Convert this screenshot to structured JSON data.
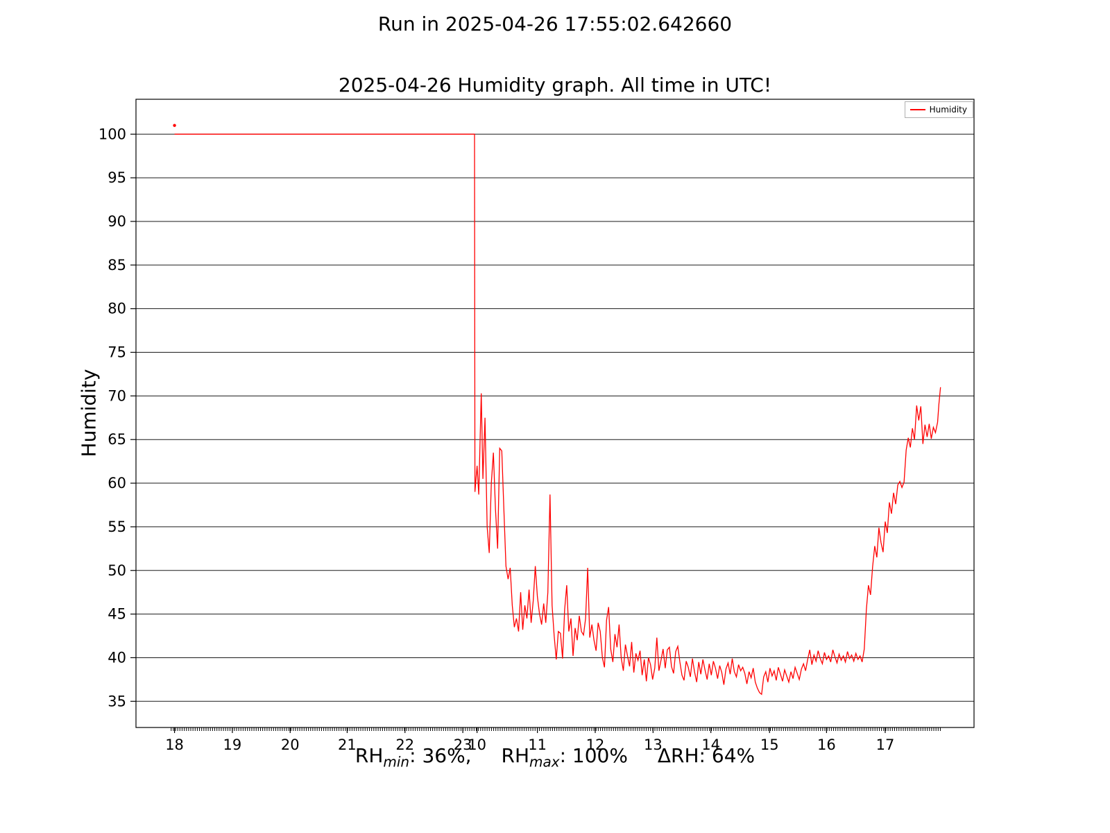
{
  "suptitle": "Run in 2025-04-26 17:55:02.642660",
  "chart_data": {
    "type": "line",
    "title": "2025-04-26 Humidity graph. All time in UTC!",
    "ylabel": "Humidity",
    "xlabel_parts": {
      "rh1": "RH",
      "sub1": "min",
      "v1": ": 36%,",
      "rh2": "RH",
      "sub2": "max",
      "v2": ": 100%",
      "delta": "ΔRH: 64%"
    },
    "stats": {
      "rh_min": "36%",
      "rh_max": "100%",
      "delta_rh": "64%"
    },
    "legend": {
      "label": "Humidity",
      "position": "upper right"
    },
    "line_color": "#ff0000",
    "grid": true,
    "ylim": [
      32,
      104
    ],
    "yticks": [
      35,
      40,
      45,
      50,
      55,
      60,
      65,
      70,
      75,
      80,
      85,
      90,
      95,
      100
    ],
    "xticks": [
      {
        "label": "18",
        "f": 0.046
      },
      {
        "label": "19",
        "f": 0.115
      },
      {
        "label": "20",
        "f": 0.184
      },
      {
        "label": "21",
        "f": 0.252
      },
      {
        "label": "22",
        "f": 0.321
      },
      {
        "label": "23",
        "f": 0.39
      },
      {
        "label": "10",
        "f": 0.407
      },
      {
        "label": "11",
        "f": 0.479
      },
      {
        "label": "12",
        "f": 0.548
      },
      {
        "label": "13",
        "f": 0.617
      },
      {
        "label": "14",
        "f": 0.686
      },
      {
        "label": "15",
        "f": 0.756
      },
      {
        "label": "16",
        "f": 0.824
      },
      {
        "label": "17",
        "f": 0.894
      }
    ],
    "minor_ticks": {
      "start": 0.042,
      "end": 0.961,
      "step": 0.0026
    },
    "outlier_point": {
      "f": 0.046,
      "y": 101
    },
    "series": [
      [
        0.046,
        100
      ],
      [
        0.404,
        100
      ],
      [
        0.4045,
        59.0
      ],
      [
        0.407,
        62.0
      ],
      [
        0.409,
        58.7
      ],
      [
        0.412,
        70.3
      ],
      [
        0.414,
        60.5
      ],
      [
        0.4165,
        67.5
      ],
      [
        0.419,
        55.0
      ],
      [
        0.4215,
        52.0
      ],
      [
        0.424,
        60.0
      ],
      [
        0.4265,
        63.5
      ],
      [
        0.429,
        57.0
      ],
      [
        0.4315,
        52.5
      ],
      [
        0.434,
        64.0
      ],
      [
        0.4365,
        63.7
      ],
      [
        0.439,
        57.0
      ],
      [
        0.4415,
        50.5
      ],
      [
        0.444,
        49.0
      ],
      [
        0.4465,
        50.3
      ],
      [
        0.449,
        46.0
      ],
      [
        0.4515,
        43.5
      ],
      [
        0.454,
        44.5
      ],
      [
        0.4565,
        43.0
      ],
      [
        0.459,
        47.5
      ],
      [
        0.4615,
        43.2
      ],
      [
        0.464,
        46.0
      ],
      [
        0.4665,
        44.5
      ],
      [
        0.469,
        47.8
      ],
      [
        0.4715,
        44.0
      ],
      [
        0.474,
        46.5
      ],
      [
        0.4765,
        50.5
      ],
      [
        0.479,
        47.0
      ],
      [
        0.4815,
        45.0
      ],
      [
        0.484,
        43.8
      ],
      [
        0.4865,
        46.2
      ],
      [
        0.489,
        44.0
      ],
      [
        0.4915,
        47.5
      ],
      [
        0.494,
        58.7
      ],
      [
        0.4965,
        46.0
      ],
      [
        0.499,
        42.5
      ],
      [
        0.5015,
        39.8
      ],
      [
        0.504,
        43.0
      ],
      [
        0.5065,
        42.8
      ],
      [
        0.509,
        39.9
      ],
      [
        0.5115,
        45.5
      ],
      [
        0.514,
        48.3
      ],
      [
        0.5165,
        43.0
      ],
      [
        0.519,
        44.5
      ],
      [
        0.5215,
        40.2
      ],
      [
        0.524,
        43.4
      ],
      [
        0.5265,
        42.0
      ],
      [
        0.529,
        44.8
      ],
      [
        0.5315,
        43.0
      ],
      [
        0.534,
        42.6
      ],
      [
        0.5365,
        44.5
      ],
      [
        0.539,
        50.3
      ],
      [
        0.5415,
        42.3
      ],
      [
        0.544,
        43.8
      ],
      [
        0.5465,
        42.0
      ],
      [
        0.549,
        40.8
      ],
      [
        0.5515,
        44.0
      ],
      [
        0.554,
        43.0
      ],
      [
        0.5565,
        40.0
      ],
      [
        0.559,
        38.9
      ],
      [
        0.5615,
        44.3
      ],
      [
        0.564,
        45.8
      ],
      [
        0.5665,
        41.0
      ],
      [
        0.569,
        39.5
      ],
      [
        0.5715,
        42.7
      ],
      [
        0.574,
        41.2
      ],
      [
        0.5765,
        43.8
      ],
      [
        0.579,
        40.0
      ],
      [
        0.5815,
        38.5
      ],
      [
        0.584,
        41.5
      ],
      [
        0.5865,
        40.2
      ],
      [
        0.589,
        39.0
      ],
      [
        0.5915,
        41.8
      ],
      [
        0.594,
        38.3
      ],
      [
        0.5965,
        40.5
      ],
      [
        0.599,
        39.7
      ],
      [
        0.6015,
        40.8
      ],
      [
        0.604,
        38.0
      ],
      [
        0.6065,
        39.8
      ],
      [
        0.609,
        37.3
      ],
      [
        0.6115,
        40.0
      ],
      [
        0.614,
        39.2
      ],
      [
        0.6165,
        37.5
      ],
      [
        0.619,
        38.8
      ],
      [
        0.6215,
        42.3
      ],
      [
        0.624,
        38.5
      ],
      [
        0.6265,
        39.7
      ],
      [
        0.629,
        41.0
      ],
      [
        0.6315,
        38.8
      ],
      [
        0.634,
        40.9
      ],
      [
        0.6365,
        41.2
      ],
      [
        0.639,
        39.0
      ],
      [
        0.6415,
        38.2
      ],
      [
        0.644,
        40.7
      ],
      [
        0.6465,
        41.3
      ],
      [
        0.649,
        39.5
      ],
      [
        0.6515,
        38.0
      ],
      [
        0.654,
        37.4
      ],
      [
        0.6565,
        39.6
      ],
      [
        0.659,
        38.9
      ],
      [
        0.6615,
        37.8
      ],
      [
        0.664,
        39.9
      ],
      [
        0.6665,
        38.4
      ],
      [
        0.669,
        37.2
      ],
      [
        0.6715,
        39.5
      ],
      [
        0.674,
        38.1
      ],
      [
        0.6765,
        39.8
      ],
      [
        0.679,
        38.6
      ],
      [
        0.6815,
        37.5
      ],
      [
        0.684,
        39.3
      ],
      [
        0.6865,
        38.0
      ],
      [
        0.689,
        39.6
      ],
      [
        0.6915,
        38.8
      ],
      [
        0.694,
        37.6
      ],
      [
        0.6965,
        39.1
      ],
      [
        0.699,
        38.3
      ],
      [
        0.7015,
        36.9
      ],
      [
        0.704,
        38.7
      ],
      [
        0.7065,
        39.4
      ],
      [
        0.709,
        38.1
      ],
      [
        0.7115,
        39.9
      ],
      [
        0.714,
        38.4
      ],
      [
        0.7165,
        37.8
      ],
      [
        0.719,
        39.2
      ],
      [
        0.7215,
        38.5
      ],
      [
        0.724,
        38.9
      ],
      [
        0.7265,
        38.2
      ],
      [
        0.729,
        37.0
      ],
      [
        0.7315,
        38.4
      ],
      [
        0.734,
        37.7
      ],
      [
        0.7365,
        38.8
      ],
      [
        0.739,
        37.2
      ],
      [
        0.7415,
        36.5
      ],
      [
        0.744,
        36.0
      ],
      [
        0.7465,
        35.8
      ],
      [
        0.749,
        37.8
      ],
      [
        0.7515,
        38.4
      ],
      [
        0.754,
        37.2
      ],
      [
        0.7565,
        38.8
      ],
      [
        0.759,
        37.9
      ],
      [
        0.7615,
        38.5
      ],
      [
        0.764,
        37.4
      ],
      [
        0.7665,
        38.9
      ],
      [
        0.769,
        38.1
      ],
      [
        0.7715,
        37.3
      ],
      [
        0.774,
        38.6
      ],
      [
        0.7765,
        37.9
      ],
      [
        0.779,
        37.2
      ],
      [
        0.7815,
        38.4
      ],
      [
        0.784,
        37.6
      ],
      [
        0.7865,
        38.9
      ],
      [
        0.789,
        38.2
      ],
      [
        0.7915,
        37.5
      ],
      [
        0.794,
        38.7
      ],
      [
        0.7965,
        39.3
      ],
      [
        0.799,
        38.5
      ],
      [
        0.8015,
        39.8
      ],
      [
        0.804,
        40.9
      ],
      [
        0.8065,
        39.2
      ],
      [
        0.809,
        40.3
      ],
      [
        0.8115,
        39.6
      ],
      [
        0.814,
        40.8
      ],
      [
        0.8165,
        39.9
      ],
      [
        0.819,
        39.3
      ],
      [
        0.8215,
        40.6
      ],
      [
        0.824,
        39.8
      ],
      [
        0.8265,
        40.2
      ],
      [
        0.829,
        39.5
      ],
      [
        0.8315,
        40.9
      ],
      [
        0.834,
        40.1
      ],
      [
        0.8365,
        39.4
      ],
      [
        0.839,
        40.4
      ],
      [
        0.8415,
        39.7
      ],
      [
        0.844,
        40.2
      ],
      [
        0.8465,
        39.5
      ],
      [
        0.849,
        40.7
      ],
      [
        0.8515,
        39.9
      ],
      [
        0.854,
        40.3
      ],
      [
        0.8565,
        39.6
      ],
      [
        0.859,
        40.5
      ],
      [
        0.8615,
        39.8
      ],
      [
        0.864,
        40.2
      ],
      [
        0.8665,
        39.5
      ],
      [
        0.869,
        41.0
      ],
      [
        0.8715,
        45.5
      ],
      [
        0.874,
        48.3
      ],
      [
        0.8765,
        47.2
      ],
      [
        0.879,
        50.4
      ],
      [
        0.8815,
        52.8
      ],
      [
        0.884,
        51.5
      ],
      [
        0.8865,
        54.9
      ],
      [
        0.889,
        53.2
      ],
      [
        0.8915,
        52.1
      ],
      [
        0.894,
        55.6
      ],
      [
        0.8965,
        54.3
      ],
      [
        0.899,
        57.8
      ],
      [
        0.9015,
        56.5
      ],
      [
        0.904,
        58.9
      ],
      [
        0.9065,
        57.6
      ],
      [
        0.909,
        59.8
      ],
      [
        0.9115,
        60.2
      ],
      [
        0.914,
        59.5
      ],
      [
        0.9165,
        60.1
      ],
      [
        0.919,
        63.8
      ],
      [
        0.9215,
        65.2
      ],
      [
        0.924,
        64.1
      ],
      [
        0.9265,
        66.3
      ],
      [
        0.929,
        65.0
      ],
      [
        0.9315,
        68.9
      ],
      [
        0.934,
        67.2
      ],
      [
        0.9365,
        68.8
      ],
      [
        0.939,
        64.5
      ],
      [
        0.9415,
        66.7
      ],
      [
        0.944,
        65.3
      ],
      [
        0.9465,
        66.8
      ],
      [
        0.949,
        65.1
      ],
      [
        0.9515,
        66.4
      ],
      [
        0.954,
        65.8
      ],
      [
        0.9565,
        67.0
      ],
      [
        0.958,
        69.0
      ],
      [
        0.96,
        71.0
      ]
    ]
  }
}
